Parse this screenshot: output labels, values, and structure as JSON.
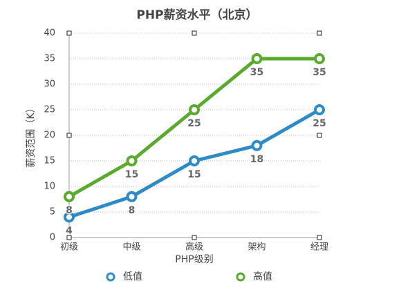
{
  "chart_data": {
    "type": "line",
    "title": "PHP薪资水平（北京）",
    "x_label": "PHP级别",
    "y_label": "薪资范围（K）",
    "categories": [
      "初级",
      "中级",
      "高级",
      "架构",
      "经理"
    ],
    "series": [
      {
        "name": "低值",
        "color": "#2e8bc8",
        "values": [
          4,
          8,
          15,
          18,
          25
        ]
      },
      {
        "name": "高值",
        "color": "#5aaa2e",
        "values": [
          8,
          15,
          25,
          35,
          35
        ]
      }
    ],
    "ylim": [
      0,
      40
    ],
    "yticks": [
      0,
      5,
      10,
      15,
      20,
      25,
      30,
      35,
      40
    ],
    "grid": true,
    "legend": "bottom"
  }
}
